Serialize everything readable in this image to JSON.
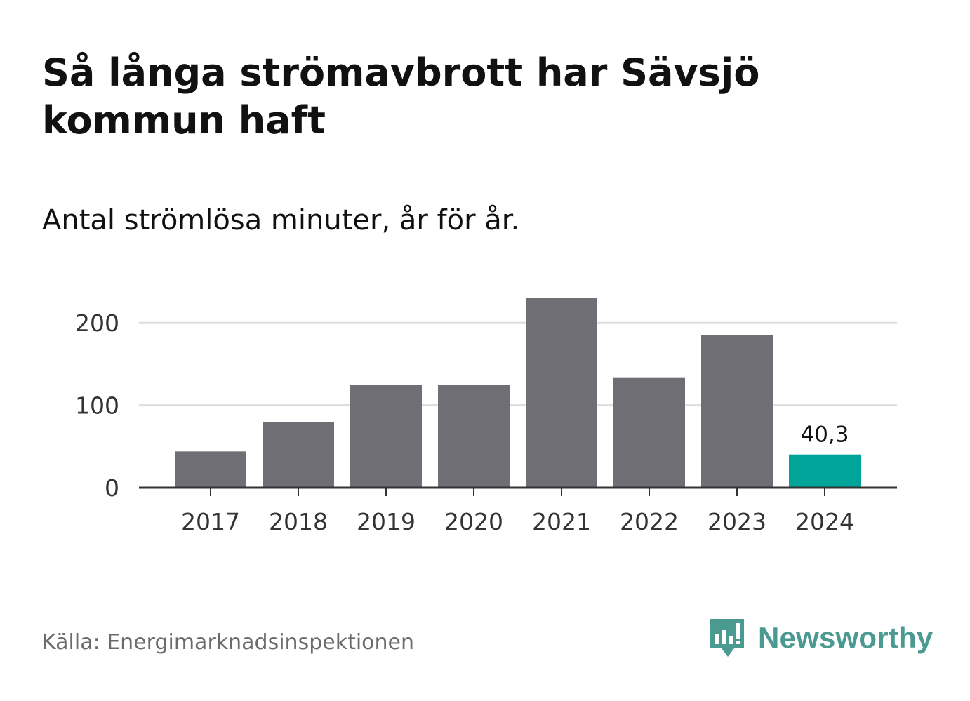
{
  "header": {
    "title": "Så långa strömavbrott har Sävsjö kommun haft",
    "subtitle": "Antal strömlösa minuter, år för år."
  },
  "footer": {
    "source": "Källa: Energimarknadsinspektionen",
    "brand": "Newsworthy"
  },
  "colors": {
    "bar": "#6e6e74",
    "highlight": "#00a499",
    "grid": "#dddddd",
    "axis": "#333333",
    "brand": "#4a9a91"
  },
  "chart_data": {
    "type": "bar",
    "title": "Så långa strömavbrott har Sävsjö kommun haft",
    "subtitle": "Antal strömlösa minuter, år för år.",
    "xlabel": "",
    "ylabel": "",
    "categories": [
      "2017",
      "2018",
      "2019",
      "2020",
      "2021",
      "2022",
      "2023",
      "2024"
    ],
    "values": [
      44,
      80,
      125,
      125,
      230,
      134,
      185,
      40.3
    ],
    "highlight_index": 7,
    "data_labels": [
      null,
      null,
      null,
      null,
      null,
      null,
      null,
      "40,3"
    ],
    "yticks": [
      0,
      100,
      200
    ],
    "ylim": [
      0,
      230
    ],
    "grid": true
  }
}
